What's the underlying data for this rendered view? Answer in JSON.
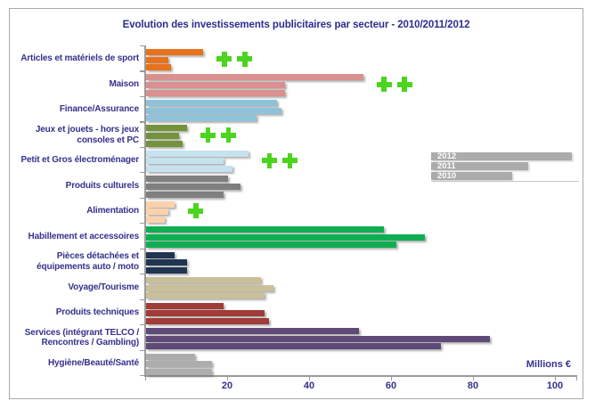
{
  "colors": {
    "title_text": "#2B2D8E",
    "label_text": "#35318C",
    "axis_line": "#9B9B9B",
    "plus_marker": "#4CD41F",
    "legend_bar": "#ABABAB",
    "legend_text": "#FFFFFF"
  },
  "chart_data": {
    "type": "bar",
    "orientation": "horizontal",
    "title": "Evolution des investissements publicitaires par secteur  - 2010/2011/2012",
    "xlabel": "Millions €",
    "ylabel": "",
    "xlim": [
      0,
      100
    ],
    "x_ticks": [
      20,
      40,
      60,
      80,
      100
    ],
    "grid": false,
    "legend_position": "right-middle",
    "legend_labels": [
      "2012",
      "2011",
      "2010"
    ],
    "categories": [
      [
        "Articles et matériels de sport"
      ],
      [
        "Maison"
      ],
      [
        "Finance/Assurance"
      ],
      [
        "Jeux et jouets - hors jeux",
        "consoles et PC"
      ],
      [
        "Petit et Gros électroménager"
      ],
      [
        "Produits culturels"
      ],
      [
        "Alimentation"
      ],
      [
        "Habillement et accessoires"
      ],
      [
        "Pièces détachées et",
        "équipements auto / moto"
      ],
      [
        "Voyage/Tourisme"
      ],
      [
        "Produits techniques"
      ],
      [
        "Services  (intégrant TELCO /",
        "Rencontres / Gambling)"
      ],
      [
        "Hygiène/Beauté/Santé"
      ]
    ],
    "series": [
      {
        "name": "2012",
        "values": [
          14,
          53,
          32,
          10,
          25,
          20,
          7,
          58,
          7,
          28,
          19,
          52,
          12
        ]
      },
      {
        "name": "2011",
        "values": [
          5.5,
          34,
          33,
          8,
          19,
          23,
          5.5,
          68,
          10,
          31,
          29,
          84,
          16
        ]
      },
      {
        "name": "2010",
        "values": [
          6,
          34,
          27,
          9,
          21,
          19,
          4.5,
          61,
          10,
          29,
          30,
          72,
          16
        ]
      }
    ],
    "category_colors": [
      "#E8721C",
      "#D9908F",
      "#8FC3DC",
      "#74923B",
      "#C6E2EE",
      "#7F7F7F",
      "#FBD2AC",
      "#0EAE52",
      "#203552",
      "#C9C099",
      "#A03B38",
      "#5F4A78",
      "#ADADAD"
    ],
    "plus_markers_per_category": [
      2,
      2,
      0,
      2,
      2,
      0,
      1,
      0,
      0,
      0,
      0,
      0,
      0
    ]
  }
}
